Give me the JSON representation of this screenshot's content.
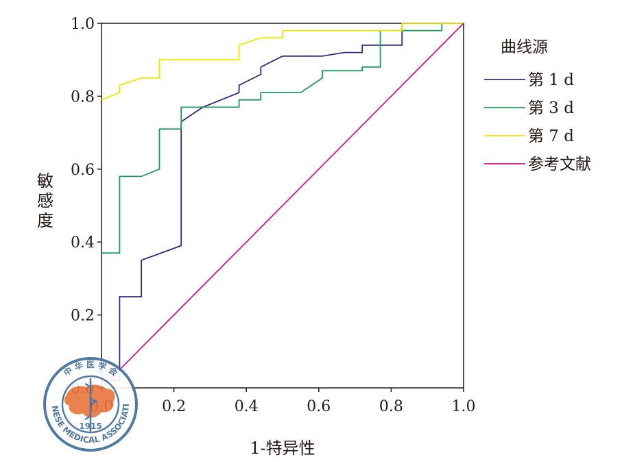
{
  "chart_data": {
    "type": "line",
    "xlabel": "1-特异性",
    "ylabel": "敏感度",
    "xlim": [
      0,
      1
    ],
    "ylim": [
      0,
      1
    ],
    "x_ticks": [
      "0.0",
      "0.2",
      "0.4",
      "0.6",
      "0.8",
      "1.0"
    ],
    "y_ticks": [
      "0.0",
      "0.2",
      "0.4",
      "0.6",
      "0.8",
      "1.0"
    ],
    "grid": false,
    "legend": {
      "title": "曲线源",
      "position": "right"
    },
    "series": [
      {
        "name": "第 1 d",
        "color": "#2c2c80",
        "points": [
          [
            0,
            0
          ],
          [
            0,
            0.02
          ],
          [
            0.05,
            0.02
          ],
          [
            0.05,
            0.25
          ],
          [
            0.11,
            0.25
          ],
          [
            0.11,
            0.35
          ],
          [
            0.22,
            0.39
          ],
          [
            0.22,
            0.73
          ],
          [
            0.28,
            0.77
          ],
          [
            0.38,
            0.81
          ],
          [
            0.38,
            0.83
          ],
          [
            0.44,
            0.86
          ],
          [
            0.44,
            0.88
          ],
          [
            0.5,
            0.91
          ],
          [
            0.61,
            0.91
          ],
          [
            0.67,
            0.92
          ],
          [
            0.72,
            0.92
          ],
          [
            0.72,
            0.94
          ],
          [
            0.83,
            0.94
          ],
          [
            0.83,
            1.0
          ],
          [
            1,
            1
          ]
        ]
      },
      {
        "name": "第 3 d",
        "color": "#1f9a5a",
        "points": [
          [
            0,
            0.37
          ],
          [
            0.05,
            0.37
          ],
          [
            0.05,
            0.58
          ],
          [
            0.11,
            0.58
          ],
          [
            0.16,
            0.6
          ],
          [
            0.16,
            0.71
          ],
          [
            0.22,
            0.71
          ],
          [
            0.22,
            0.77
          ],
          [
            0.38,
            0.77
          ],
          [
            0.38,
            0.79
          ],
          [
            0.44,
            0.79
          ],
          [
            0.44,
            0.81
          ],
          [
            0.55,
            0.81
          ],
          [
            0.61,
            0.85
          ],
          [
            0.61,
            0.87
          ],
          [
            0.72,
            0.87
          ],
          [
            0.72,
            0.88
          ],
          [
            0.77,
            0.88
          ],
          [
            0.77,
            0.98
          ],
          [
            0.94,
            0.98
          ],
          [
            0.94,
            1.0
          ],
          [
            1,
            1
          ]
        ]
      },
      {
        "name": "第 7 d",
        "color": "#f2e600",
        "points": [
          [
            0,
            0.79
          ],
          [
            0.05,
            0.81
          ],
          [
            0.05,
            0.83
          ],
          [
            0.11,
            0.85
          ],
          [
            0.16,
            0.85
          ],
          [
            0.16,
            0.9
          ],
          [
            0.38,
            0.9
          ],
          [
            0.38,
            0.94
          ],
          [
            0.44,
            0.96
          ],
          [
            0.5,
            0.96
          ],
          [
            0.5,
            0.98
          ],
          [
            0.83,
            0.98
          ],
          [
            0.83,
            1.0
          ],
          [
            1,
            1
          ]
        ]
      },
      {
        "name": "参考文献",
        "color": "#d4148c",
        "points": [
          [
            0,
            0
          ],
          [
            1,
            1
          ]
        ]
      }
    ],
    "watermark": {
      "top_text": "中 华 医 学 会",
      "year": "1915",
      "bottom_text": "CHINESE MEDICAL ASSOCIATION",
      "ring_color": "#3f6c9a",
      "fill_color": "#e8743b"
    }
  }
}
